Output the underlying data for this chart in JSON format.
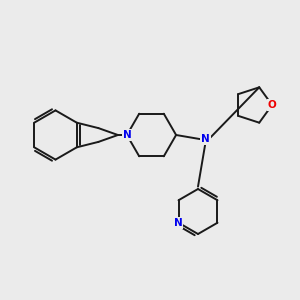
{
  "bg_color": "#ebebeb",
  "bond_color": "#1a1a1a",
  "N_color": "#0000ee",
  "O_color": "#ee0000",
  "line_width": 1.4,
  "figsize": [
    3.0,
    3.0
  ],
  "dpi": 100,
  "xlim": [
    0,
    10
  ],
  "ylim": [
    0,
    10
  ]
}
